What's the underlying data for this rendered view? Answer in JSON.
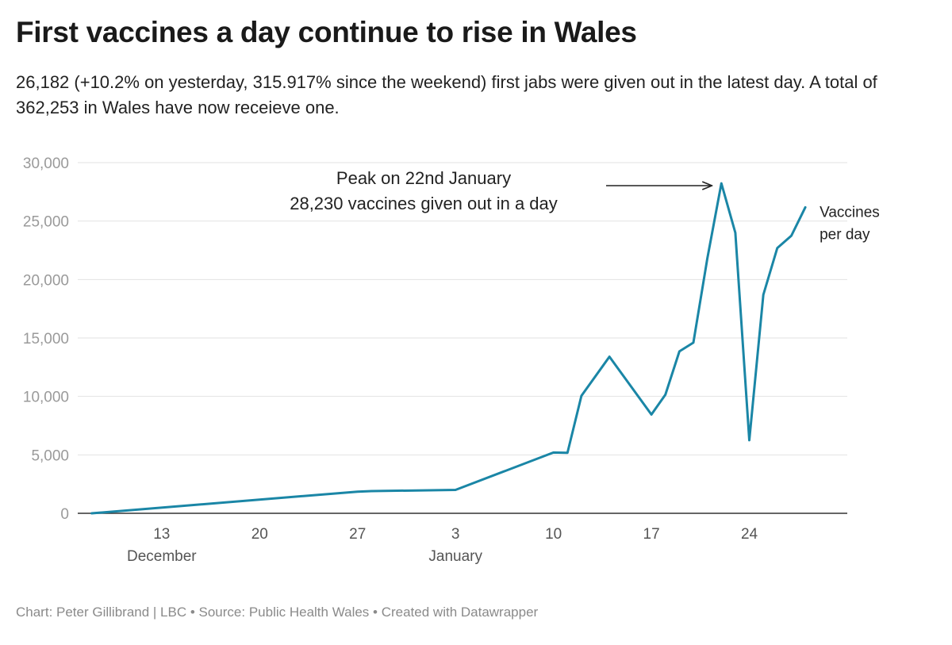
{
  "header": {
    "title": "First vaccines a day continue to rise in Wales",
    "subtitle": "26,182 (+10.2% on yesterday, 315.917% since the weekend) first jabs were given out in the latest day. A total of 362,253 in Wales have now receieve one."
  },
  "footer": {
    "credit": "Chart: Peter Gillibrand | LBC • Source: Public Health Wales • Created with Datawrapper"
  },
  "colors": {
    "line": "#1a86a6",
    "grid": "#e2e2e2",
    "axis": "#333333"
  },
  "chart_data": {
    "type": "line",
    "title": "First vaccines a day continue to rise in Wales",
    "xlabel": "",
    "ylabel": "",
    "ylim": [
      0,
      30000
    ],
    "xlim": [
      "2020-12-07",
      "2021-01-31"
    ],
    "y_ticks": [
      {
        "value": 0,
        "label": "0"
      },
      {
        "value": 5000,
        "label": "5,000"
      },
      {
        "value": 10000,
        "label": "10,000"
      },
      {
        "value": 15000,
        "label": "15,000"
      },
      {
        "value": 20000,
        "label": "20,000"
      },
      {
        "value": 25000,
        "label": "25,000"
      },
      {
        "value": 30000,
        "label": "30,000"
      }
    ],
    "x_ticks": [
      {
        "date": "2020-12-13",
        "label": "13",
        "sublabel": "December"
      },
      {
        "date": "2020-12-20",
        "label": "20",
        "sublabel": ""
      },
      {
        "date": "2020-12-27",
        "label": "27",
        "sublabel": ""
      },
      {
        "date": "2021-01-03",
        "label": "3",
        "sublabel": "January"
      },
      {
        "date": "2021-01-10",
        "label": "10",
        "sublabel": ""
      },
      {
        "date": "2021-01-17",
        "label": "17",
        "sublabel": ""
      },
      {
        "date": "2021-01-24",
        "label": "24",
        "sublabel": ""
      }
    ],
    "grid": true,
    "series": [
      {
        "name": "Vaccines per day",
        "label_lines": [
          "Vaccines",
          "per day"
        ],
        "x": [
          "2020-12-08",
          "2020-12-27",
          "2020-12-28",
          "2021-01-03",
          "2021-01-10",
          "2021-01-11",
          "2021-01-12",
          "2021-01-14",
          "2021-01-17",
          "2021-01-18",
          "2021-01-19",
          "2021-01-20",
          "2021-01-21",
          "2021-01-22",
          "2021-01-23",
          "2021-01-24",
          "2021-01-25",
          "2021-01-26",
          "2021-01-27",
          "2021-01-28"
        ],
        "y": [
          0,
          1850,
          1900,
          2000,
          5200,
          5180,
          10050,
          13400,
          8450,
          10150,
          13850,
          14600,
          21800,
          28230,
          24000,
          6250,
          18700,
          22700,
          23750,
          26182
        ]
      }
    ],
    "annotations": [
      {
        "lines": [
          "Peak on 22nd January",
          "28,230 vaccines given out in a day"
        ],
        "arrow_to": {
          "x": "2021-01-22",
          "y": 28230
        }
      }
    ]
  }
}
